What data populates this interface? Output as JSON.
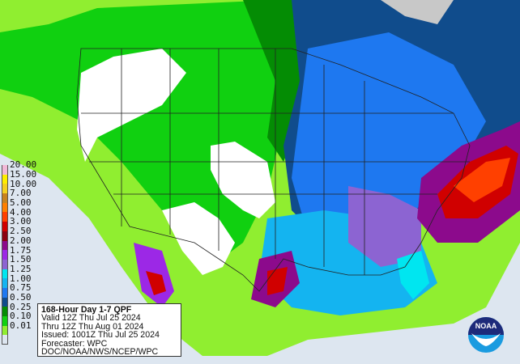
{
  "map": {
    "product": "168-Hour Day 1-7 QPF",
    "colors": {
      "ocean_none": "#e8eef4",
      "land_none": "#ffffff",
      "no_data": "#c8c8c8"
    }
  },
  "legend": {
    "items": [
      {
        "label": "20.00",
        "color": "#f2b8d8"
      },
      {
        "label": "15.00",
        "color": "#ffee00"
      },
      {
        "label": "10.00",
        "color": "#f5d020"
      },
      {
        "label": "7.00",
        "color": "#c8821e"
      },
      {
        "label": "5.00",
        "color": "#ff7f00"
      },
      {
        "label": "4.00",
        "color": "#ff4000"
      },
      {
        "label": "3.00",
        "color": "#d00000"
      },
      {
        "label": "2.50",
        "color": "#8b0010"
      },
      {
        "label": "2.00",
        "color": "#8c0a8c"
      },
      {
        "label": "1.75",
        "color": "#9c28e6"
      },
      {
        "label": "1.50",
        "color": "#8c64d2"
      },
      {
        "label": "1.25",
        "color": "#00e6f0"
      },
      {
        "label": "1.00",
        "color": "#14b4f0"
      },
      {
        "label": "0.75",
        "color": "#1e78f0"
      },
      {
        "label": "0.50",
        "color": "#104c8c"
      },
      {
        "label": "0.25",
        "color": "#048c04"
      },
      {
        "label": "0.10",
        "color": "#10d010"
      },
      {
        "label": "0.01",
        "color": "#90ee30"
      },
      {
        "label": "",
        "color": "#dde6f0"
      }
    ]
  },
  "info": {
    "title": "168-Hour Day 1-7 QPF",
    "valid": "Valid 12Z Thu Jul 25 2024",
    "thru": "Thru 12Z Thu Aug 01 2024",
    "issued": "Issued: 1001Z Thu Jul 25 2024",
    "forecaster": "Forecaster: WPC",
    "agency": "DOC/NOAA/NWS/NCEP/WPC"
  },
  "logo": {
    "text": "NOAA"
  }
}
